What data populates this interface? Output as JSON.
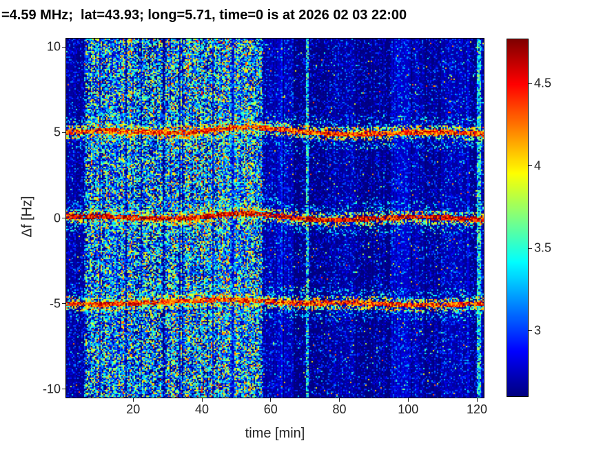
{
  "chart_data": {
    "type": "heatmap",
    "title": "=4.59 MHz;  lat=43.93; long=5.71, time=0 is at 2026 02 03 22:00",
    "xlabel": "time [min]",
    "ylabel": "Δf [Hz]",
    "xlim": [
      0.5,
      122
    ],
    "ylim": [
      -10.5,
      10.5
    ],
    "x_ticks": [
      20,
      40,
      60,
      80,
      100,
      120
    ],
    "y_ticks": [
      10,
      5,
      0,
      -5,
      -10
    ],
    "clim": [
      2.6,
      4.77
    ],
    "colorbar_ticks": [
      3,
      3.5,
      4,
      4.5
    ],
    "colormap": "jet",
    "legend": "none",
    "grid": false,
    "background_level": 2.64,
    "spectral_lines": [
      {
        "center": 5,
        "strength": 4.45
      },
      {
        "center": 0,
        "strength": 4.6
      },
      {
        "center": -5,
        "strength": 4.45
      }
    ],
    "noise_band": {
      "t_start": 5.5,
      "t_end": 58,
      "level": 3.6
    },
    "bright_columns": [
      70.5,
      120.5
    ],
    "dark_columns": [
      68,
      94
    ],
    "seed": 20260203
  }
}
